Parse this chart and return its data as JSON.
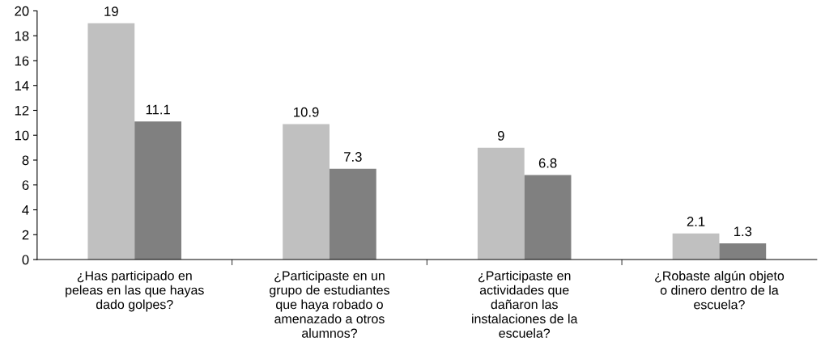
{
  "chart_data": {
    "type": "bar",
    "categories": [
      "¿Has participado en\npeleas en las que hayas\ndado golpes?",
      "¿Participaste en un\ngrupo de estudiantes\nque haya robado o\namenazado a otros\nalumnos?",
      "¿Participaste en\nactividades que\ndañaron las\ninstalaciones de la\nescuela?",
      "¿Robaste algún objeto\no dinero dentro de la\nescuela?"
    ],
    "series": [
      {
        "color": "#c0c0c0",
        "values": [
          19,
          10.9,
          9,
          2.1
        ]
      },
      {
        "color": "#808080",
        "values": [
          11.1,
          7.3,
          6.8,
          1.3
        ]
      }
    ],
    "ylim": [
      0,
      20
    ],
    "yticks": [
      0,
      2,
      4,
      6,
      8,
      10,
      12,
      14,
      16,
      18,
      20
    ],
    "data_labels": true,
    "grid": false,
    "legend": false
  }
}
